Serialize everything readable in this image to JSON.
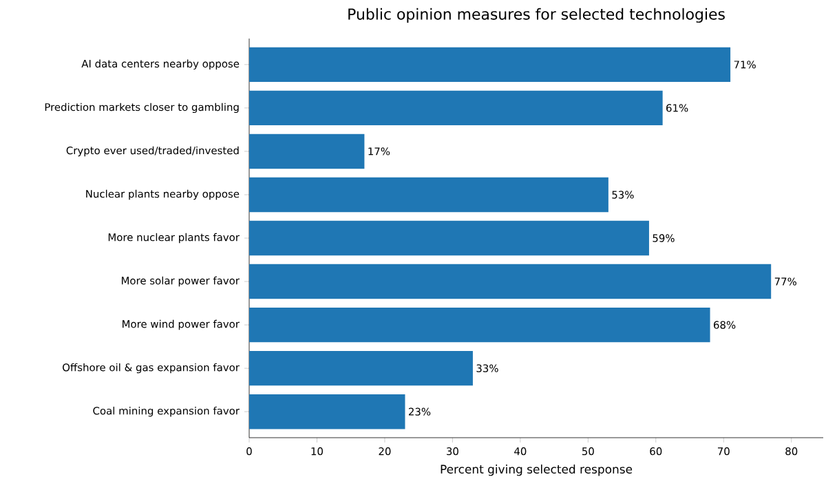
{
  "chart_data": {
    "type": "bar",
    "orientation": "horizontal",
    "title": "Public opinion measures for selected technologies",
    "xlabel": "Percent giving selected response",
    "categories": [
      "AI data centers nearby oppose",
      "Prediction markets closer to gambling",
      "Crypto ever used/traded/invested",
      "Nuclear plants nearby oppose",
      "More nuclear plants favor",
      "More solar power favor",
      "More wind power favor",
      "Offshore oil & gas expansion favor",
      "Coal mining expansion favor"
    ],
    "values": [
      71,
      61,
      17,
      53,
      59,
      77,
      68,
      33,
      23
    ],
    "value_labels": [
      "71%",
      "61%",
      "17%",
      "53%",
      "59%",
      "77%",
      "68%",
      "33%",
      "23%"
    ],
    "color": "#1f77b4",
    "xlim": [
      0,
      84.7
    ],
    "xticks": [
      0,
      10,
      20,
      30,
      40,
      50,
      60,
      70,
      80
    ]
  }
}
